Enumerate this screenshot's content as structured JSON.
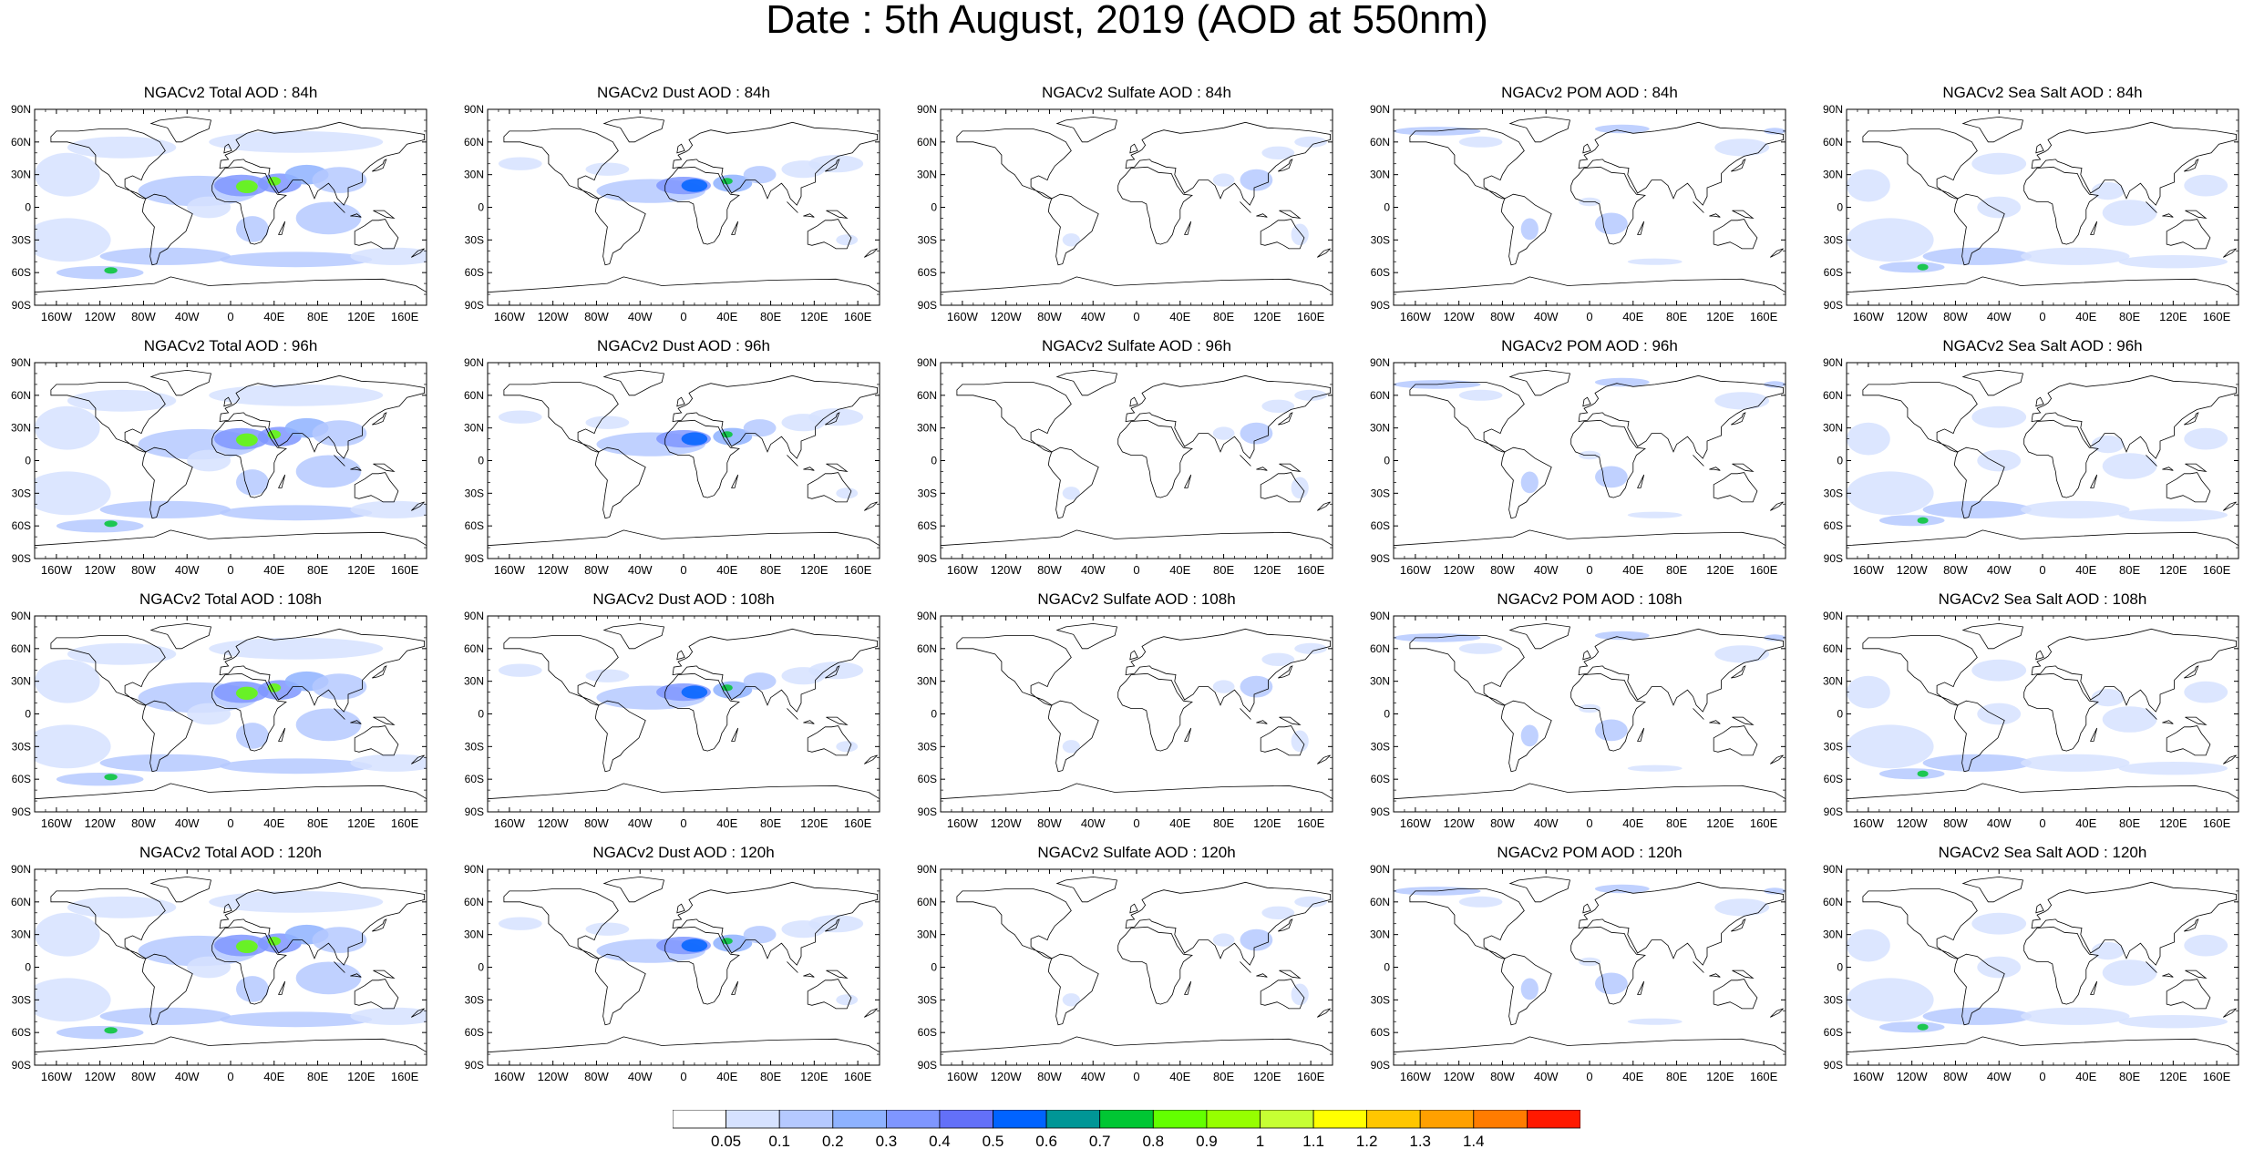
{
  "title": "Date : 5th August, 2019 (AOD at 550nm)",
  "lat_ticks": [
    "90N",
    "60N",
    "30N",
    "0",
    "30S",
    "60S",
    "90S"
  ],
  "lon_ticks": [
    "160W",
    "120W",
    "80W",
    "40W",
    "0",
    "40E",
    "80E",
    "120E",
    "160E"
  ],
  "panels": [
    {
      "title": "NGACv2 Total AOD : 84h",
      "type": "total"
    },
    {
      "title": "NGACv2 Dust AOD : 84h",
      "type": "dust"
    },
    {
      "title": "NGACv2 Sulfate AOD : 84h",
      "type": "sulfate"
    },
    {
      "title": "NGACv2 POM AOD : 84h",
      "type": "pom"
    },
    {
      "title": "NGACv2 Sea Salt AOD : 84h",
      "type": "seasalt"
    },
    {
      "title": "NGACv2 Total AOD : 96h",
      "type": "total"
    },
    {
      "title": "NGACv2 Dust AOD : 96h",
      "type": "dust"
    },
    {
      "title": "NGACv2 Sulfate AOD : 96h",
      "type": "sulfate"
    },
    {
      "title": "NGACv2 POM AOD : 96h",
      "type": "pom"
    },
    {
      "title": "NGACv2 Sea Salt AOD : 96h",
      "type": "seasalt"
    },
    {
      "title": "NGACv2 Total AOD : 108h",
      "type": "total"
    },
    {
      "title": "NGACv2 Dust AOD : 108h",
      "type": "dust"
    },
    {
      "title": "NGACv2 Sulfate AOD : 108h",
      "type": "sulfate"
    },
    {
      "title": "NGACv2 POM AOD : 108h",
      "type": "pom"
    },
    {
      "title": "NGACv2 Sea Salt AOD : 108h",
      "type": "seasalt"
    },
    {
      "title": "NGACv2 Total AOD : 120h",
      "type": "total"
    },
    {
      "title": "NGACv2 Dust AOD : 120h",
      "type": "dust"
    },
    {
      "title": "NGACv2 Sulfate AOD : 120h",
      "type": "sulfate"
    },
    {
      "title": "NGACv2 POM AOD : 120h",
      "type": "pom"
    },
    {
      "title": "NGACv2 Sea Salt  AOD : 120h",
      "type": "seasalt"
    }
  ],
  "colorbar": {
    "labels": [
      "0.05",
      "0.1",
      "0.2",
      "0.3",
      "0.4",
      "0.5",
      "0.6",
      "0.7",
      "0.8",
      "0.9",
      "1",
      "1.1",
      "1.2",
      "1.3",
      "1.4"
    ],
    "colors": [
      "#ffffff",
      "#d6e2ff",
      "#b5c9ff",
      "#8eb2ff",
      "#7f96ff",
      "#6370f8",
      "#0063ff",
      "#009696",
      "#00c633",
      "#63ff00",
      "#96ff00",
      "#c6ff33",
      "#ffff00",
      "#ffc600",
      "#ffa000",
      "#ff7c00",
      "#ff1900"
    ]
  }
}
